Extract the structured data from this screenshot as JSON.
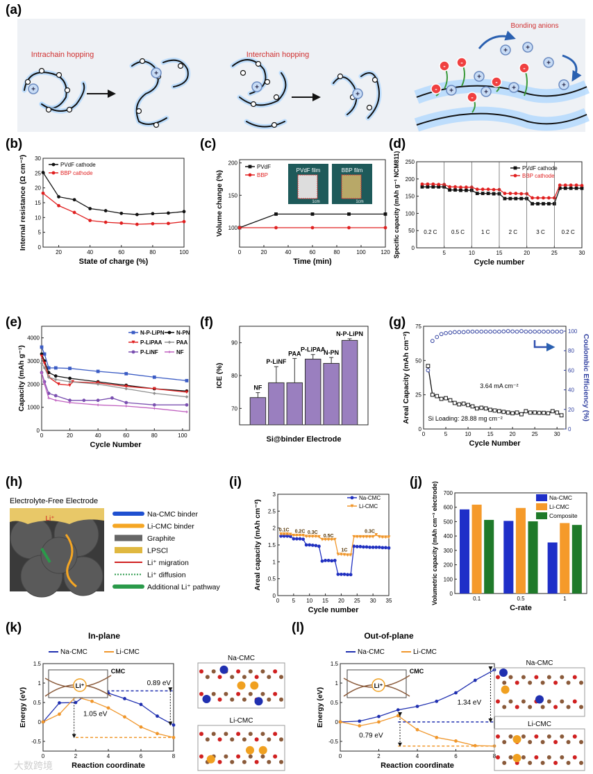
{
  "panels": {
    "a": "(a)",
    "b": "(b)",
    "c": "(c)",
    "d": "(d)",
    "e": "(e)",
    "f": "(f)",
    "g": "(g)",
    "h": "(h)",
    "i": "(i)",
    "j": "(j)",
    "k": "(k)",
    "l": "(l)"
  },
  "panel_a": {
    "intrachain": "Intrachain hopping",
    "interchain": "Interchain hopping",
    "bonding": "Bonding anions",
    "plus": "+",
    "minus": "-"
  },
  "panel_h": {
    "title": "Electrolyte-Free Electrode",
    "li": "Li⁺",
    "legend": [
      "Na-CMC binder",
      "Li-CMC binder",
      "Graphite",
      "LPSCl",
      "Li⁺ migration",
      "Li⁺ diffusion",
      "Additional Li⁺ pathway"
    ]
  },
  "panel_k": {
    "title": "In-plane",
    "struct1": "Na-CMC",
    "struct2": "Li-CMC",
    "inset_cmc": "CMC",
    "inset_li": "Li⁺"
  },
  "panel_l": {
    "title": "Out-of-plane",
    "struct1": "Na-CMC",
    "struct2": "Li-CMC",
    "inset_cmc": "CMC",
    "inset_li": "Li⁺"
  },
  "watermark": "大数跨境",
  "chart_data": [
    {
      "id": "b",
      "type": "line",
      "xlabel": "State of charge (%)",
      "ylabel": "Internal resistance (Ω cm⁻²)",
      "xlim": [
        10,
        100
      ],
      "ylim": [
        0,
        30
      ],
      "xticks": [
        20,
        40,
        60,
        80,
        100
      ],
      "yticks": [
        0,
        5,
        10,
        15,
        20,
        25,
        30
      ],
      "x": [
        10,
        20,
        30,
        40,
        50,
        60,
        70,
        80,
        90,
        100
      ],
      "series": [
        {
          "name": "PVdF cathode",
          "color": "#111111",
          "marker": "circle",
          "values": [
            25.2,
            17,
            16,
            13,
            12.3,
            11.4,
            11,
            11.3,
            11.5,
            12
          ]
        },
        {
          "name": "BBP cathode",
          "color": "#e02020",
          "marker": "circle",
          "values": [
            18.2,
            14,
            11.7,
            9,
            8.4,
            8.1,
            7.7,
            7.9,
            8,
            8.6
          ]
        }
      ]
    },
    {
      "id": "c",
      "type": "line",
      "xlabel": "Time (min)",
      "ylabel": "Volume change (%)",
      "xlim": [
        0,
        120
      ],
      "ylim": [
        70,
        205
      ],
      "xticks": [
        0,
        20,
        40,
        60,
        80,
        100,
        120
      ],
      "yticks": [
        100,
        150,
        200
      ],
      "x": [
        0,
        30,
        60,
        90,
        120
      ],
      "series": [
        {
          "name": "PVdF",
          "color": "#111111",
          "marker": "square",
          "values": [
            100,
            121,
            121,
            121,
            121
          ]
        },
        {
          "name": "BBP",
          "color": "#e02020",
          "marker": "circle",
          "values": [
            100,
            100,
            100,
            100,
            100
          ]
        }
      ],
      "insets": [
        "PVdF film",
        "BBP film"
      ],
      "scale_label": "1cm"
    },
    {
      "id": "d",
      "type": "line",
      "xlabel": "Cycle number",
      "ylabel": "Specific capacity (mAh g⁻¹ NCM811)",
      "xlim": [
        0,
        30
      ],
      "ylim": [
        0,
        250
      ],
      "xticks": [
        5,
        10,
        15,
        20,
        25,
        30
      ],
      "yticks": [
        0,
        50,
        100,
        150,
        200,
        250
      ],
      "x": [
        1,
        2,
        3,
        4,
        5,
        6,
        7,
        8,
        9,
        10,
        11,
        12,
        13,
        14,
        15,
        16,
        17,
        18,
        19,
        20,
        21,
        22,
        23,
        24,
        25,
        26,
        27,
        28,
        29,
        30
      ],
      "series": [
        {
          "name": "PVdF cathode",
          "color": "#111111",
          "marker": "square",
          "values": [
            177,
            177,
            177,
            177,
            177,
            168,
            168,
            167,
            167,
            167,
            158,
            158,
            158,
            157,
            157,
            143,
            143,
            143,
            143,
            143,
            128,
            128,
            128,
            128,
            128,
            173,
            173,
            173,
            173,
            173
          ]
        },
        {
          "name": "BBP cathode",
          "color": "#e02020",
          "marker": "circle",
          "values": [
            185,
            185,
            185,
            184,
            184,
            177,
            177,
            176,
            176,
            176,
            170,
            170,
            170,
            169,
            169,
            158,
            158,
            158,
            157,
            157,
            145,
            145,
            145,
            145,
            145,
            182,
            182,
            182,
            182,
            181
          ]
        }
      ],
      "annotations": [
        "0.2 C",
        "0.5 C",
        "1 C",
        "2 C",
        "3 C",
        "0.2 C"
      ]
    },
    {
      "id": "e",
      "type": "line",
      "xlabel": "Cycle Number",
      "ylabel": "Capacity (mAh g⁻¹)",
      "xlim": [
        0,
        105
      ],
      "ylim": [
        0,
        4500
      ],
      "xticks": [
        0,
        20,
        40,
        60,
        80,
        100
      ],
      "yticks": [
        0,
        1000,
        2000,
        3000,
        4000
      ],
      "series": [
        {
          "name": "N-P-LiPN",
          "color": "#3a5bc4",
          "marker": "square",
          "x": [
            0,
            2,
            5,
            10,
            20,
            40,
            60,
            80,
            103
          ],
          "values": [
            3600,
            3300,
            2700,
            2700,
            2680,
            2550,
            2450,
            2300,
            2150
          ]
        },
        {
          "name": "N-PN",
          "color": "#111111",
          "marker": "circle",
          "x": [
            0,
            2,
            5,
            10,
            20,
            40,
            60,
            80,
            103
          ],
          "values": [
            3300,
            3000,
            2500,
            2350,
            2250,
            2100,
            1950,
            1800,
            1700
          ]
        },
        {
          "name": "P-LiPAA",
          "color": "#e02020",
          "marker": "triangle",
          "x": [
            0,
            2,
            5,
            12,
            20,
            22,
            40,
            60,
            80,
            103
          ],
          "values": [
            3200,
            2900,
            2300,
            2000,
            1950,
            2100,
            2050,
            1900,
            1800,
            1650
          ]
        },
        {
          "name": "PAA",
          "color": "#909090",
          "marker": "diamond",
          "x": [
            0,
            2,
            5,
            10,
            20,
            40,
            60,
            80,
            103
          ],
          "values": [
            2900,
            2700,
            2300,
            2200,
            2100,
            2000,
            1800,
            1600,
            1450
          ]
        },
        {
          "name": "P-LiNF",
          "color": "#7a4fb0",
          "marker": "circle",
          "x": [
            0,
            2,
            5,
            10,
            20,
            30,
            40,
            50,
            60,
            80,
            103
          ],
          "values": [
            2500,
            2100,
            1600,
            1500,
            1300,
            1300,
            1300,
            1400,
            1200,
            1100,
            1100
          ]
        },
        {
          "name": "NF",
          "color": "#c060c0",
          "marker": "star",
          "x": [
            0,
            2,
            5,
            10,
            20,
            40,
            60,
            80,
            103
          ],
          "values": [
            2500,
            2000,
            1400,
            1300,
            1200,
            1100,
            1050,
            950,
            800
          ]
        }
      ]
    },
    {
      "id": "f",
      "type": "bar",
      "xlabel": "Si@binder Electrode",
      "ylabel": "ICE (%)",
      "ylim": [
        65,
        95
      ],
      "yticks": [
        70,
        80,
        90
      ],
      "categories": [
        "NF",
        "P-LiNF",
        "PAA",
        "P-LiPAA",
        "N-PN",
        "N-P-LiPN"
      ],
      "values": [
        73.3,
        77.8,
        77.8,
        85,
        83.7,
        90.7
      ],
      "errors": [
        1.5,
        4.9,
        7.4,
        1.4,
        1.8,
        0.5
      ],
      "color": "#9a7fbf"
    },
    {
      "id": "g",
      "type": "line",
      "xlabel": "Cycle Number",
      "ylabel": "Areal Capacity (mAh cm⁻²)",
      "ylabel2": "Coulombic Efficiency (%)",
      "xlim": [
        0,
        32
      ],
      "ylim": [
        0,
        75
      ],
      "y2lim": [
        0,
        105
      ],
      "xticks": [
        0,
        5,
        10,
        15,
        20,
        25,
        30
      ],
      "yticks": [
        0,
        25,
        50,
        75
      ],
      "y2ticks": [
        0,
        20,
        40,
        60,
        80,
        100
      ],
      "x": [
        1,
        2,
        3,
        4,
        5,
        6,
        7,
        8,
        9,
        10,
        11,
        12,
        13,
        14,
        15,
        16,
        17,
        18,
        19,
        20,
        21,
        22,
        23,
        24,
        25,
        26,
        27,
        28,
        29,
        30,
        31
      ],
      "series": [
        {
          "name": "Areal capacity",
          "color": "#111111",
          "marker": "open-square",
          "nolines": false,
          "values": [
            46,
            25,
            24,
            22,
            22.5,
            21,
            19,
            18,
            18.5,
            17.5,
            16.5,
            15,
            15.5,
            15,
            14,
            13.5,
            13,
            12.5,
            12,
            11.5,
            12,
            10.8,
            13,
            12,
            12,
            11.8,
            11.8,
            11.5,
            13,
            12,
            10
          ]
        },
        {
          "name": "Coulombic efficiency",
          "color": "#3040a0",
          "marker": "open-circle",
          "axis": "right",
          "nolines": true,
          "values": [
            60,
            90,
            94,
            97,
            98,
            98.5,
            99,
            99,
            99,
            99.5,
            99.5,
            99.5,
            99.5,
            99.5,
            99.5,
            99.5,
            99.5,
            99.7,
            100,
            99.7,
            99.5,
            100,
            99.5,
            99.5,
            99.5,
            99.5,
            99.5,
            99.5,
            99.5,
            99.5,
            99.5
          ]
        }
      ],
      "annotations": [
        "3.64 mA cm⁻²",
        "Si Loading: 28.88 mg cm⁻²"
      ]
    },
    {
      "id": "i",
      "type": "line",
      "xlabel": "Cycle number",
      "ylabel": "Areal capacity (mAh cm⁻²)",
      "xlim": [
        0,
        35
      ],
      "ylim": [
        0,
        3
      ],
      "xticks": [
        0,
        5,
        10,
        15,
        20,
        25,
        30,
        35
      ],
      "yticks": [
        0.0,
        0.5,
        1.0,
        1.5,
        2.0,
        2.5,
        3.0
      ],
      "x": [
        1,
        2,
        3,
        4,
        5,
        6,
        7,
        8,
        9,
        10,
        11,
        12,
        13,
        14,
        15,
        16,
        17,
        18,
        19,
        20,
        21,
        22,
        23,
        24,
        25,
        26,
        27,
        28,
        29,
        30,
        31,
        32,
        33,
        34,
        35
      ],
      "series": [
        {
          "name": "Na-CMC",
          "color": "#2030c0",
          "marker": "circle",
          "values": [
            1.76,
            1.76,
            1.76,
            1.75,
            1.68,
            1.68,
            1.68,
            1.67,
            1.5,
            1.5,
            1.49,
            1.48,
            1.46,
            1.02,
            1.04,
            1.04,
            1.03,
            1.04,
            0.63,
            0.63,
            0.63,
            0.62,
            0.62,
            1.46,
            1.45,
            1.45,
            1.44,
            1.44,
            1.43,
            1.43,
            1.43,
            1.43,
            1.42,
            1.42,
            1.41
          ]
        },
        {
          "name": "Li-CMC",
          "color": "#f0962a",
          "marker": "triangle-down",
          "values": [
            1.82,
            1.82,
            1.82,
            1.81,
            1.78,
            1.78,
            1.78,
            1.78,
            1.75,
            1.75,
            1.75,
            1.75,
            1.74,
            1.66,
            1.66,
            1.66,
            1.66,
            1.66,
            1.22,
            1.22,
            1.21,
            1.2,
            1.2,
            1.74,
            1.74,
            1.74,
            1.74,
            1.74,
            1.74,
            1.74,
            1.8,
            1.74,
            1.73,
            1.73,
            1.73
          ]
        }
      ],
      "annotations": [
        "0.1C",
        "0.2C",
        "0.3C",
        "0.5C",
        "1C",
        "0.3C"
      ]
    },
    {
      "id": "j",
      "type": "grouped-bar",
      "xlabel": "C-rate",
      "ylabel": "Volumetric capacity (mAh cm⁻³ electrode)",
      "ylim": [
        0,
        700
      ],
      "yticks": [
        0,
        100,
        200,
        300,
        400,
        500,
        600,
        700
      ],
      "categories": [
        "0.1",
        "0.5",
        "1"
      ],
      "series": [
        {
          "name": "Na-CMC",
          "color": "#1f2fc8",
          "values": [
            585,
            505,
            355
          ]
        },
        {
          "name": "Li-CMC",
          "color": "#f59a2a",
          "values": [
            618,
            595,
            490
          ]
        },
        {
          "name": "Composite",
          "color": "#1f7a2a",
          "values": [
            512,
            502,
            477
          ]
        }
      ]
    },
    {
      "id": "k",
      "type": "line",
      "xlabel": "Reaction coordinate",
      "ylabel": "Energy (eV)",
      "xlim": [
        0,
        8
      ],
      "ylim": [
        -0.75,
        1.5
      ],
      "xticks": [
        0,
        2,
        4,
        6,
        8
      ],
      "yticks": [
        -0.5,
        0.0,
        0.5,
        1.0,
        1.5
      ],
      "x": [
        0,
        1,
        2,
        3,
        4,
        5,
        6,
        7,
        8
      ],
      "series": [
        {
          "name": "Na-CMC",
          "color": "#1f2fb0",
          "marker": "circle",
          "values": [
            0,
            0.49,
            0.5,
            0.8,
            0.74,
            0.6,
            0.45,
            0.15,
            -0.08
          ]
        },
        {
          "name": "Li-CMC",
          "color": "#f0962a",
          "marker": "circle",
          "values": [
            0,
            0.2,
            0.65,
            0.53,
            0.36,
            0.13,
            -0.13,
            -0.3,
            -0.4
          ]
        }
      ],
      "annotations": [
        "0.89 eV",
        "1.05 eV"
      ]
    },
    {
      "id": "l",
      "type": "line",
      "xlabel": "Reaction coordinate",
      "ylabel": "Energy (eV)",
      "xlim": [
        0,
        8
      ],
      "ylim": [
        -0.75,
        1.5
      ],
      "xticks": [
        0,
        2,
        4,
        6,
        8
      ],
      "yticks": [
        -0.5,
        0.0,
        0.5,
        1.0,
        1.5
      ],
      "x": [
        0,
        1,
        2,
        3,
        4,
        5,
        6,
        7,
        8
      ],
      "series": [
        {
          "name": "Na-CMC",
          "color": "#1f2fb0",
          "marker": "circle",
          "values": [
            0,
            0.02,
            0.14,
            0.31,
            0.4,
            0.53,
            0.75,
            1.07,
            1.34
          ]
        },
        {
          "name": "Li-CMC",
          "color": "#f0962a",
          "marker": "circle",
          "values": [
            0,
            -0.1,
            0.0,
            0.16,
            -0.2,
            -0.4,
            -0.49,
            -0.61,
            -0.62
          ]
        }
      ],
      "annotations": [
        "1.34 eV",
        "0.79 eV"
      ]
    }
  ]
}
